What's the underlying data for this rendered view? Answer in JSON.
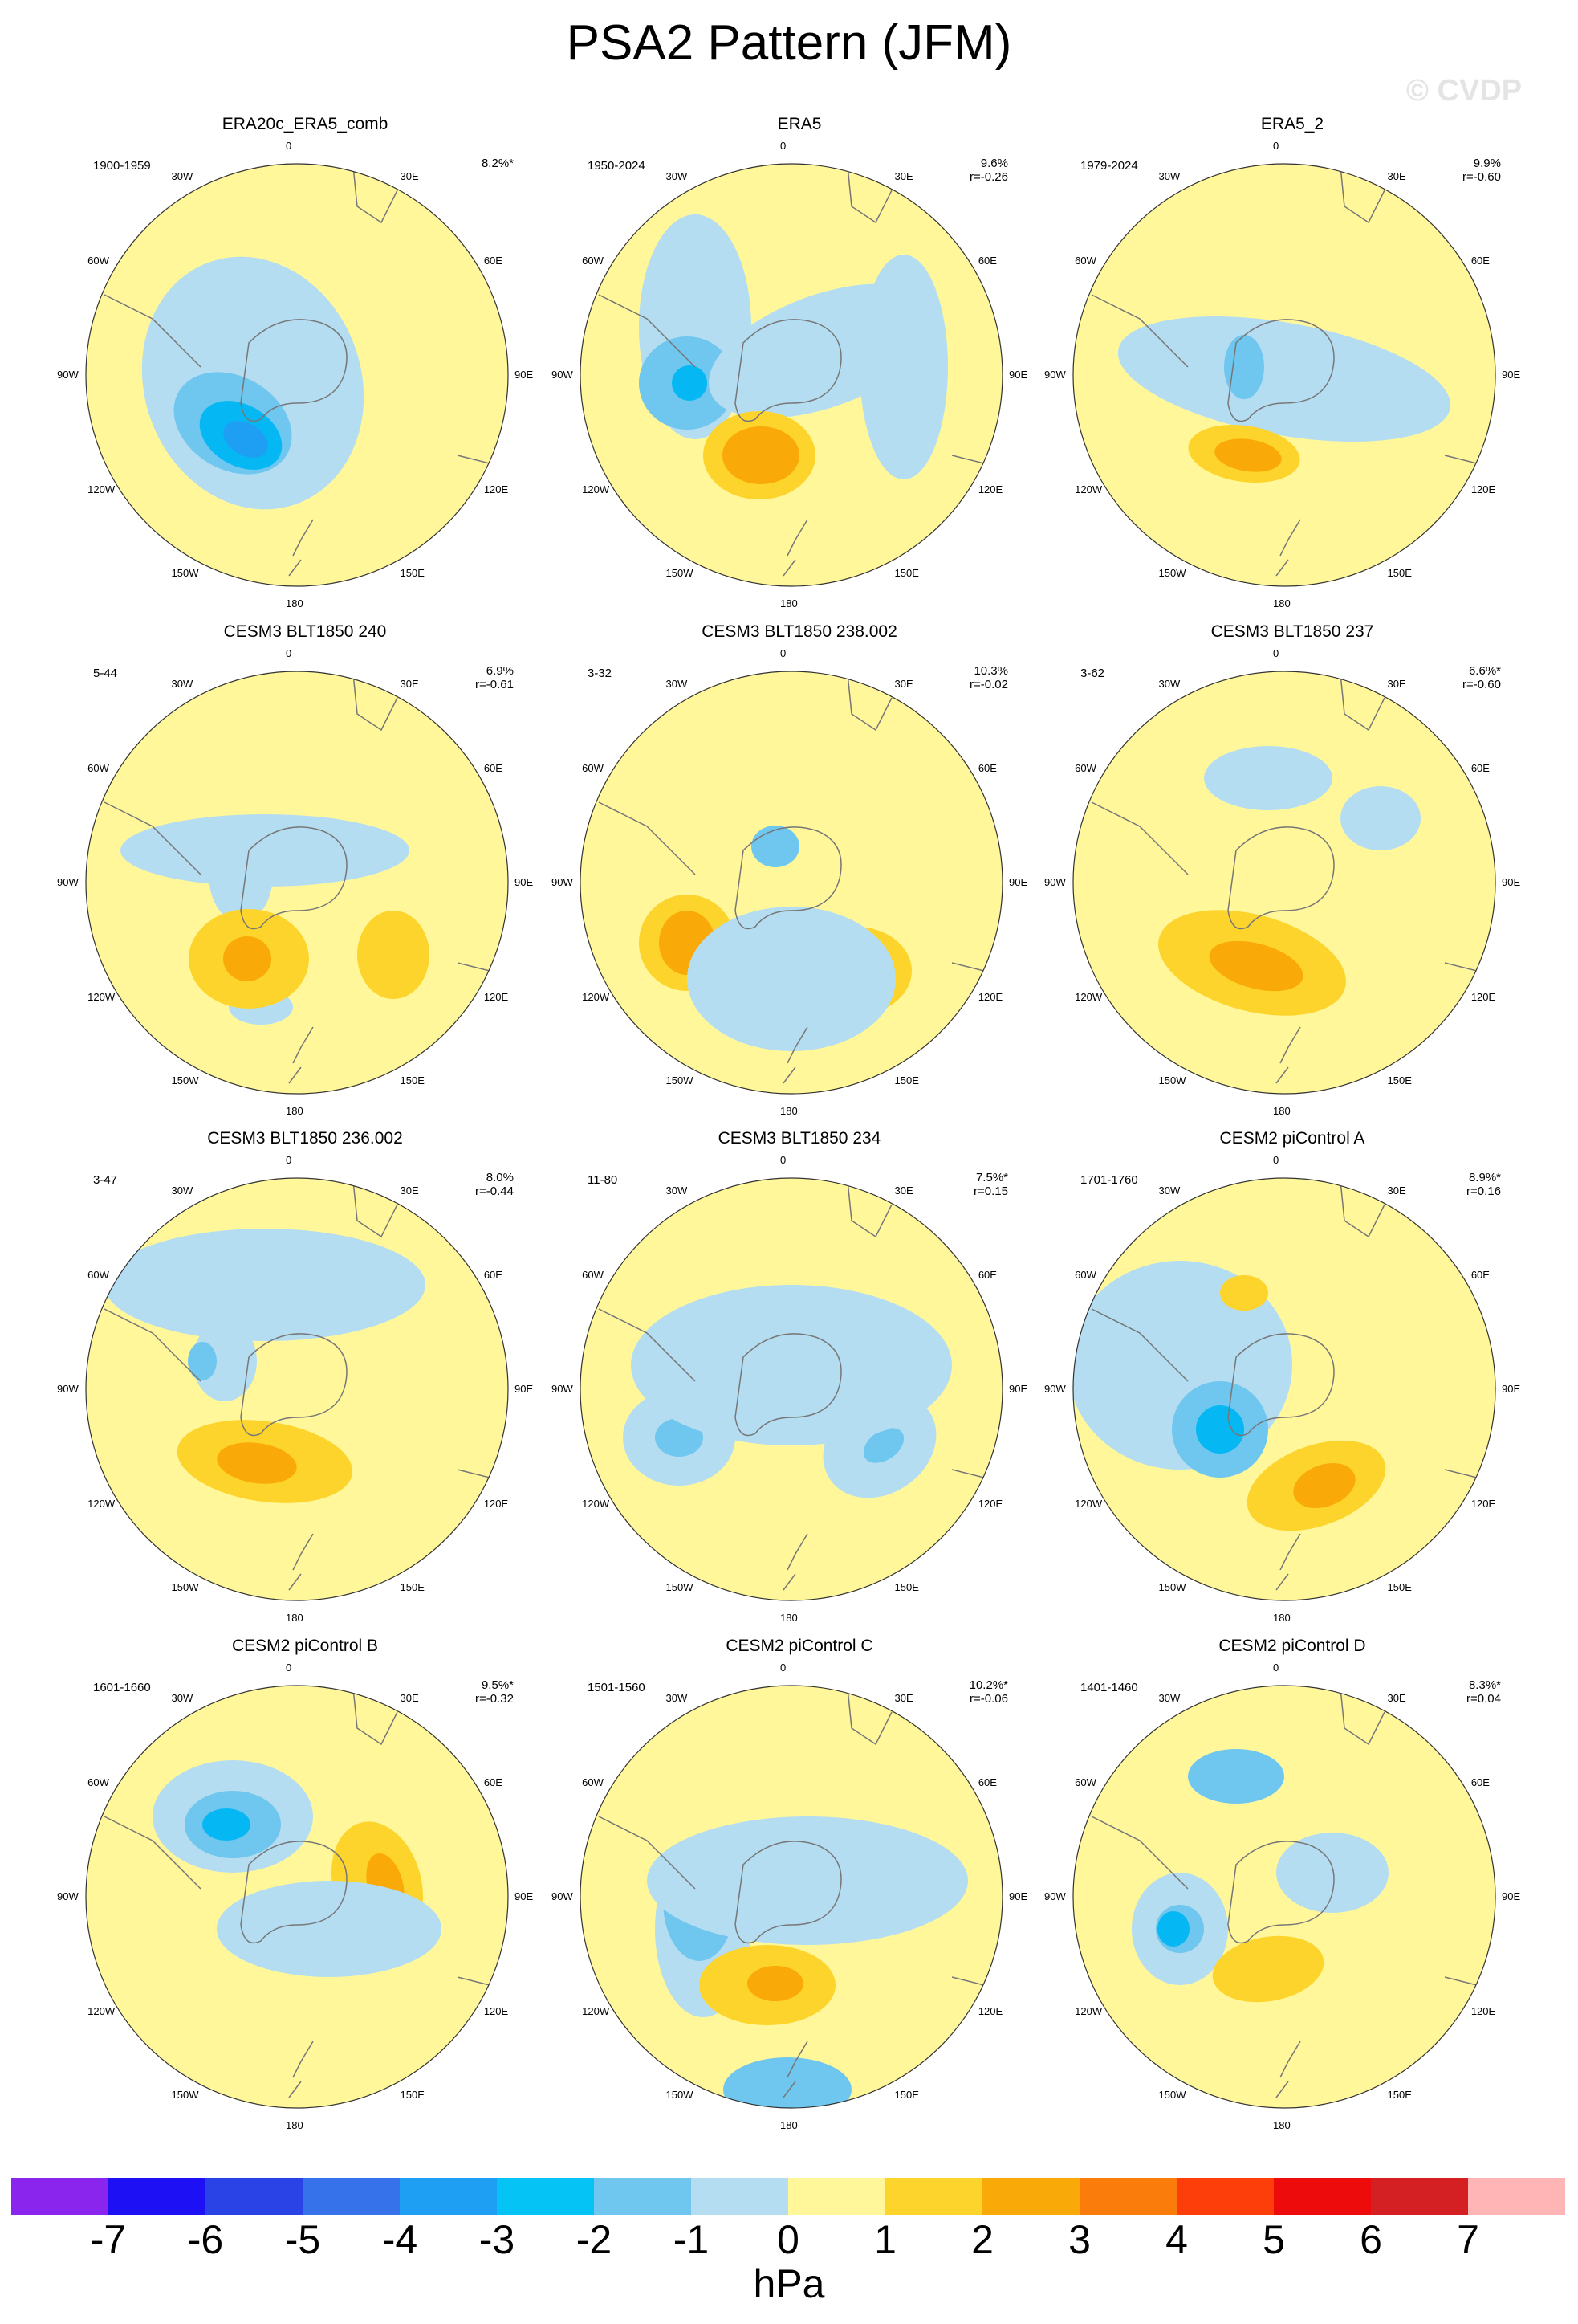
{
  "title": "PSA2 Pattern (JFM)",
  "watermark": "© CVDP",
  "colors": {
    "ocean_pos1": "#fff79a",
    "neg1": "#b4ddf2",
    "neg2": "#6fc6ef",
    "neg3": "#05b8f3",
    "neg4": "#1f9ff3",
    "pos2": "#fdd42b",
    "pos3": "#f9a908",
    "coast": "#777777"
  },
  "lon_labels": [
    "0",
    "30E",
    "60E",
    "90E",
    "120E",
    "150E",
    "180",
    "150W",
    "120W",
    "90W",
    "60W",
    "30W"
  ],
  "panels": [
    {
      "title": "ERA20c_ERA5_comb",
      "years": "1900-1959",
      "pct": "8.2%*",
      "corr": ""
    },
    {
      "title": "ERA5",
      "years": "1950-2024",
      "pct": "9.6%",
      "corr": "r=-0.26"
    },
    {
      "title": "ERA5_2",
      "years": "1979-2024",
      "pct": "9.9%",
      "corr": "r=-0.60"
    },
    {
      "title": "CESM3 BLT1850 240",
      "years": "5-44",
      "pct": "6.9%",
      "corr": "r=-0.61"
    },
    {
      "title": "CESM3 BLT1850 238.002",
      "years": "3-32",
      "pct": "10.3%",
      "corr": "r=-0.02"
    },
    {
      "title": "CESM3 BLT1850 237",
      "years": "3-62",
      "pct": "6.6%*",
      "corr": "r=-0.60"
    },
    {
      "title": "CESM3 BLT1850 236.002",
      "years": "3-47",
      "pct": "8.0%",
      "corr": "r=-0.44"
    },
    {
      "title": "CESM3 BLT1850 234",
      "years": "11-80",
      "pct": "7.5%*",
      "corr": "r=0.15"
    },
    {
      "title": "CESM2 piControl A",
      "years": "1701-1760",
      "pct": "8.9%*",
      "corr": "r=0.16"
    },
    {
      "title": "CESM2 piControl B",
      "years": "1601-1660",
      "pct": "9.5%*",
      "corr": "r=-0.32"
    },
    {
      "title": "CESM2 piControl C",
      "years": "1501-1560",
      "pct": "10.2%*",
      "corr": "r=-0.06"
    },
    {
      "title": "CESM2 piControl D",
      "years": "1401-1460",
      "pct": "8.3%*",
      "corr": "r=0.04"
    }
  ],
  "colorbar": {
    "colors": [
      "#8a25ee",
      "#1d10f5",
      "#2a43e6",
      "#3673ea",
      "#1f9ff3",
      "#05c3f5",
      "#6fc6ef",
      "#b4ddf2",
      "#fff79a",
      "#fdd42b",
      "#f9a908",
      "#fa7d0c",
      "#fd3d0a",
      "#ee0b0b",
      "#d42022",
      "#ffb5b5"
    ],
    "ticks": [
      "-7",
      "-6",
      "-5",
      "-4",
      "-3",
      "-2",
      "-1",
      "0",
      "1",
      "2",
      "3",
      "4",
      "5",
      "6",
      "7"
    ],
    "units": "hPa"
  }
}
